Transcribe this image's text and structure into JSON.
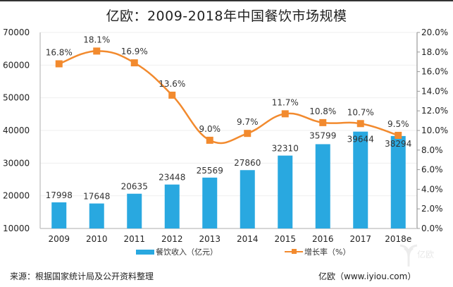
{
  "chart_data": {
    "type": "bar+line",
    "title": "亿欧：2009-2018年中国餐饮市场规模",
    "categories": [
      "2009",
      "2010",
      "2011",
      "2012",
      "2013",
      "2014",
      "2015",
      "2016",
      "2017",
      "2018e"
    ],
    "series": [
      {
        "name": "餐饮收入（亿元）",
        "type": "bar",
        "axis": "left",
        "color": "#29a8e0",
        "values": [
          17998,
          17648,
          20635,
          23448,
          25569,
          27860,
          32310,
          35799,
          39644,
          38294
        ]
      },
      {
        "name": "增长率（%）",
        "type": "line",
        "axis": "right",
        "color": "#f28a2e",
        "values": [
          16.8,
          18.1,
          16.9,
          13.6,
          9.0,
          9.7,
          11.7,
          10.8,
          10.7,
          9.5
        ],
        "labels": [
          "16.8%",
          "18.1%",
          "16.9%",
          "13.6%",
          "9.0%",
          "9.7%",
          "11.7%",
          "10.8%",
          "10.7%",
          "9.5%"
        ]
      }
    ],
    "y_left": {
      "min": 10000,
      "max": 70000,
      "ticks": [
        "10000",
        "20000",
        "30000",
        "40000",
        "50000",
        "60000",
        "70000"
      ]
    },
    "y_right": {
      "min": 0,
      "max": 20,
      "ticks": [
        "0.0%",
        "2.0%",
        "4.0%",
        "6.0%",
        "8.0%",
        "10.0%",
        "12.0%",
        "14.0%",
        "16.0%",
        "18.0%",
        "20.0%"
      ]
    },
    "grid": true,
    "legend": "bottom-center"
  },
  "footer": {
    "source": "来源：根据国家统计局及公开资料整理",
    "credit": "亿欧（www.iyiou.com）",
    "watermark": "亿欧"
  }
}
